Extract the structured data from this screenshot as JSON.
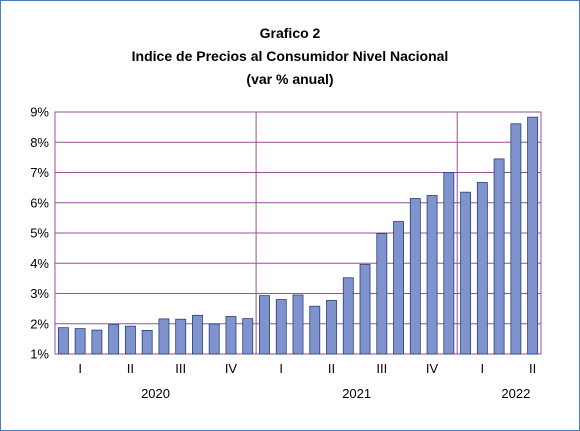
{
  "chart_data": {
    "type": "bar",
    "title": "Grafico 2",
    "subtitle_lines": [
      "Indice de Precios al Consumidor Nivel Nacional",
      "(var % anual)"
    ],
    "ylim": [
      1,
      9
    ],
    "y_tick_labels": [
      "1%",
      "2%",
      "3%",
      "4%",
      "5%",
      "6%",
      "7%",
      "8%",
      "9%"
    ],
    "grid": true,
    "bar_color": "#7f94cf",
    "bar_edge_color": "#2a3f7a",
    "gridline_color": "#9b4f9b",
    "values": [
      1.87,
      1.84,
      1.79,
      1.97,
      1.92,
      1.78,
      2.16,
      2.15,
      2.28,
      1.99,
      2.24,
      2.17,
      2.93,
      2.8,
      2.95,
      2.58,
      2.77,
      3.52,
      3.96,
      4.98,
      5.38,
      6.14,
      6.24,
      7.0,
      6.35,
      6.67,
      7.45,
      8.61,
      8.83
    ],
    "quarter_labels": [
      {
        "label": "I",
        "at": 1
      },
      {
        "label": "II",
        "at": 4
      },
      {
        "label": "III",
        "at": 7
      },
      {
        "label": "IV",
        "at": 10
      },
      {
        "label": "I",
        "at": 13
      },
      {
        "label": "II",
        "at": 16
      },
      {
        "label": "III",
        "at": 19
      },
      {
        "label": "IV",
        "at": 22
      },
      {
        "label": "I",
        "at": 25
      },
      {
        "label": "II",
        "at": 28
      }
    ],
    "year_labels": [
      {
        "label": "2020",
        "at": 5.5
      },
      {
        "label": "2021",
        "at": 17.5
      },
      {
        "label": "2022",
        "at": 27
      }
    ],
    "year_separators_after": [
      11,
      23
    ]
  }
}
